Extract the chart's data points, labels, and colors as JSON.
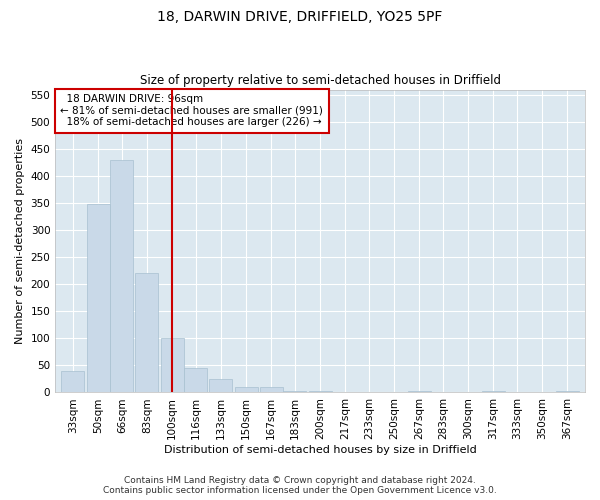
{
  "title": "18, DARWIN DRIVE, DRIFFIELD, YO25 5PF",
  "subtitle": "Size of property relative to semi-detached houses in Driffield",
  "xlabel": "Distribution of semi-detached houses by size in Driffield",
  "ylabel": "Number of semi-detached properties",
  "footer_line1": "Contains HM Land Registry data © Crown copyright and database right 2024.",
  "footer_line2": "Contains public sector information licensed under the Open Government Licence v3.0.",
  "annotation_title": "18 DARWIN DRIVE: 96sqm",
  "annotation_line1": "← 81% of semi-detached houses are smaller (991)",
  "annotation_line2": "18% of semi-detached houses are larger (226) →",
  "bar_color": "#c9d9e8",
  "bar_edge_color": "#a8c0d0",
  "vline_color": "#cc0000",
  "background_color": "#dce8f0",
  "fig_background_color": "#ffffff",
  "annotation_box_color": "#ffffff",
  "annotation_box_edge": "#cc0000",
  "categories": [
    "33sqm",
    "50sqm",
    "66sqm",
    "83sqm",
    "100sqm",
    "116sqm",
    "133sqm",
    "150sqm",
    "167sqm",
    "183sqm",
    "200sqm",
    "217sqm",
    "233sqm",
    "250sqm",
    "267sqm",
    "283sqm",
    "300sqm",
    "317sqm",
    "333sqm",
    "350sqm",
    "367sqm"
  ],
  "bin_edges": [
    33,
    50,
    66,
    83,
    100,
    116,
    133,
    150,
    167,
    183,
    200,
    217,
    233,
    250,
    267,
    283,
    300,
    317,
    333,
    350,
    367
  ],
  "values": [
    40,
    348,
    430,
    220,
    100,
    45,
    25,
    10,
    10,
    3,
    3,
    1,
    0,
    0,
    3,
    0,
    0,
    3,
    0,
    0,
    3
  ],
  "vline_x": 100,
  "ylim": [
    0,
    560
  ],
  "yticks": [
    0,
    50,
    100,
    150,
    200,
    250,
    300,
    350,
    400,
    450,
    500,
    550
  ],
  "grid_color": "#ffffff",
  "title_fontsize": 10,
  "subtitle_fontsize": 8.5,
  "axis_label_fontsize": 8,
  "tick_fontsize": 7.5,
  "annotation_fontsize": 7.5,
  "footer_fontsize": 6.5
}
